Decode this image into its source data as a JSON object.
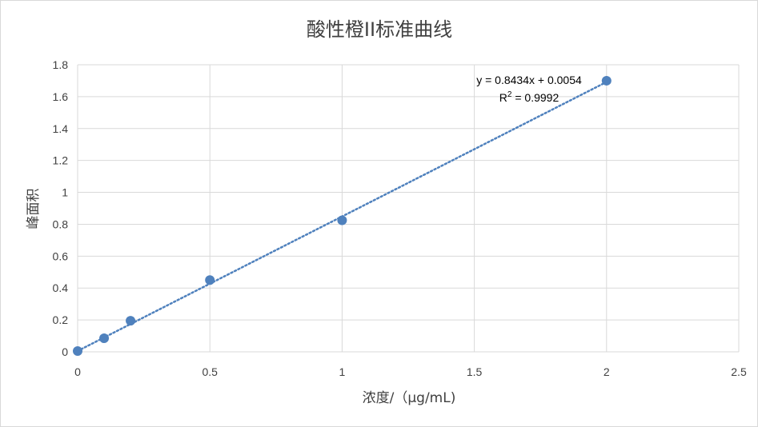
{
  "chart_data": {
    "type": "scatter",
    "title": "酸性橙II标准曲线",
    "xlabel": "浓度/（μg/mL)",
    "ylabel": "峰面积",
    "xlim": [
      0,
      2.5
    ],
    "ylim": [
      0,
      1.8
    ],
    "x_ticks": [
      0,
      0.5,
      1,
      1.5,
      2,
      2.5
    ],
    "x_tick_labels": [
      "0",
      "0.5",
      "1",
      "1.5",
      "2",
      "2.5"
    ],
    "y_ticks": [
      0,
      0.2,
      0.4,
      0.6,
      0.8,
      1.0,
      1.2,
      1.4,
      1.6,
      1.8
    ],
    "y_tick_labels": [
      "0",
      "0.2",
      "0.4",
      "0.6",
      "0.8",
      "1",
      "1.2",
      "1.4",
      "1.6",
      "1.8"
    ],
    "grid": true,
    "series": [
      {
        "x": [
          0,
          0.1,
          0.2,
          0.5,
          1,
          2
        ],
        "y": [
          0.005,
          0.085,
          0.195,
          0.45,
          0.825,
          1.7
        ],
        "color": "#4f81bd"
      }
    ],
    "trendline": {
      "type": "linear",
      "slope": 0.8434,
      "intercept": 0.0054,
      "x_range": [
        0,
        2
      ],
      "color": "#4f81bd",
      "style": "dotted",
      "equation_text": "y = 0.8434x + 0.0054",
      "r2_prefix": "R",
      "r2_superscript": "2",
      "r2_suffix": " = 0.9992"
    }
  }
}
